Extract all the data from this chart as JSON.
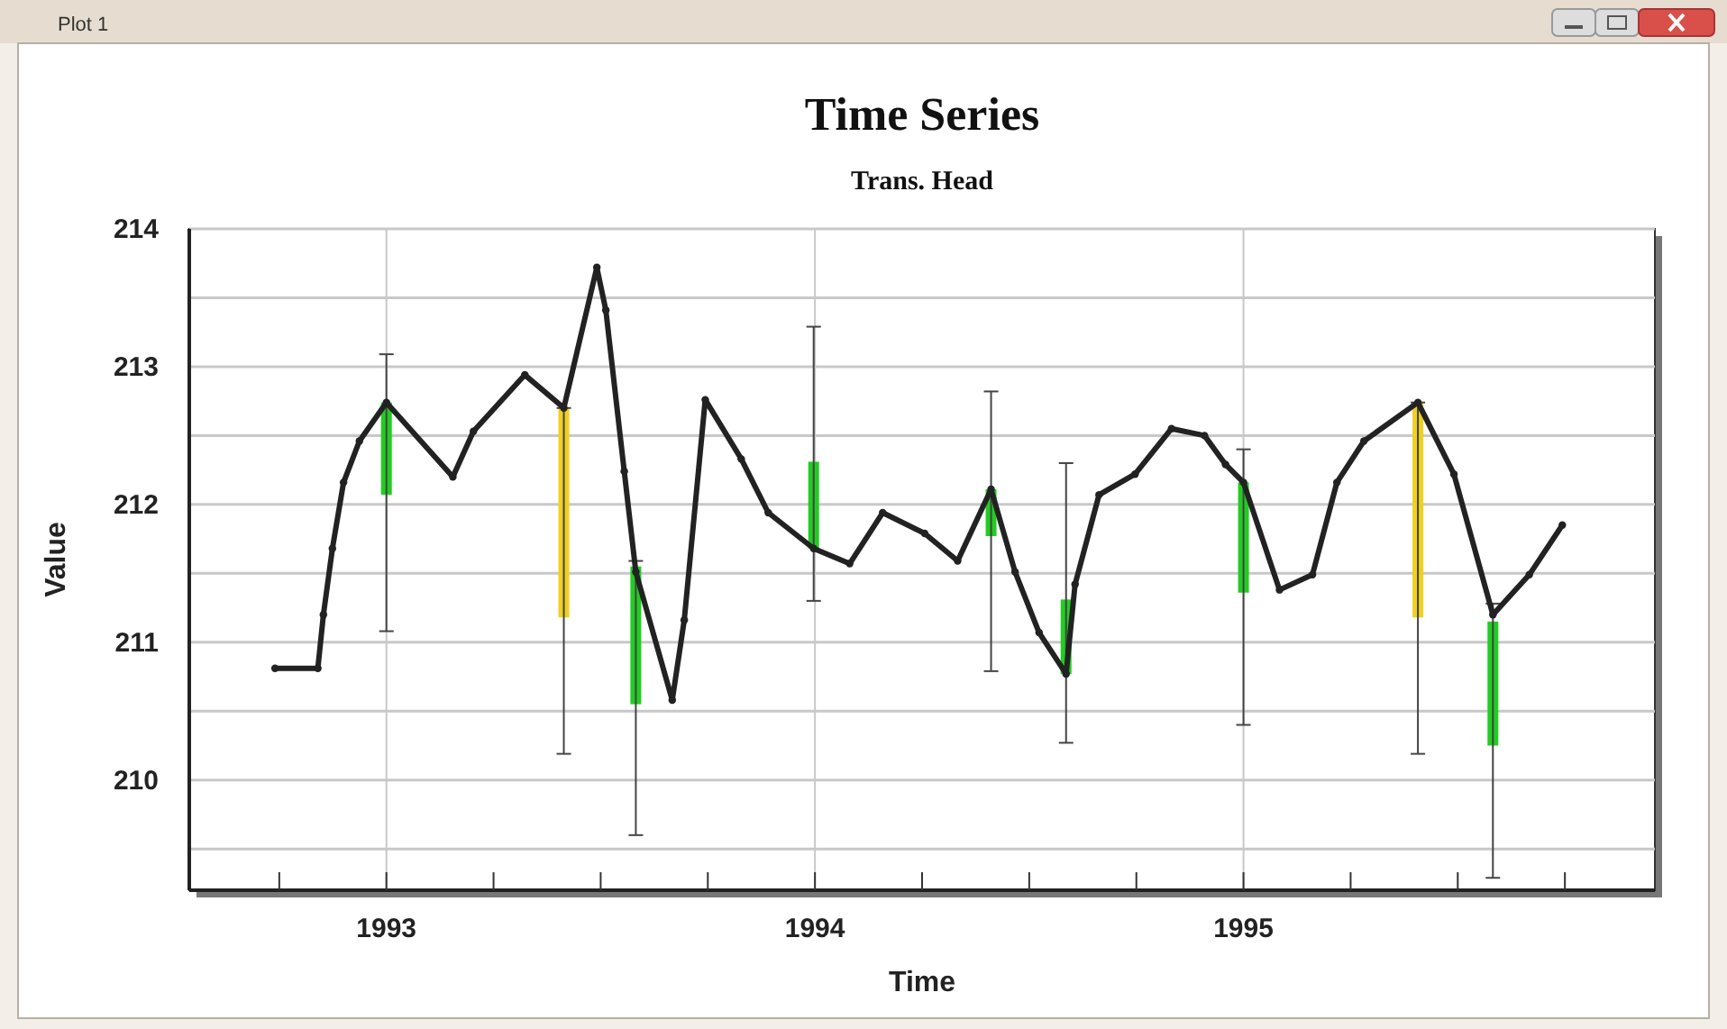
{
  "chart_data": {
    "type": "line",
    "title": "Time Series",
    "subtitle": "Trans. Head",
    "xlabel": "Time",
    "ylabel": "Value",
    "annotations": [
      "Plot 1"
    ],
    "xlim": [
      1992.54,
      1995.96
    ],
    "ylim": [
      209.2,
      214
    ],
    "xticks": [
      {
        "value": 1992.75,
        "label": null
      },
      1993,
      {
        "value": 1993.25,
        "label": null
      },
      {
        "value": 1993.5,
        "label": null
      },
      {
        "value": 1993.75,
        "label": null
      },
      1994,
      {
        "value": 1994.25,
        "label": null
      },
      {
        "value": 1994.5,
        "label": null
      },
      {
        "value": 1994.75,
        "label": null
      },
      1995,
      {
        "value": 1995.25,
        "label": null
      },
      {
        "value": 1995.5,
        "label": null
      },
      {
        "value": 1995.75,
        "label": null
      }
    ],
    "yticks": [
      {
        "value": 209.5,
        "label": null
      },
      210,
      {
        "value": 210.5,
        "label": null
      },
      211,
      {
        "value": 211.5,
        "label": null
      },
      212,
      {
        "value": 212.5,
        "label": null
      },
      213,
      {
        "value": 213.5,
        "label": null
      },
      214
    ],
    "grid": true,
    "marker": "circle",
    "line_style": "solid",
    "series": [
      {
        "color": "#222222",
        "x": [
          1992.74,
          1992.84,
          1992.853,
          1992.874,
          1992.9,
          1992.937,
          1993.0,
          1993.155,
          1993.203,
          1993.323,
          1993.414,
          1993.491,
          1993.512,
          1993.555,
          1993.582,
          1993.667,
          1993.695,
          1993.744,
          1993.828,
          1993.891,
          1993.997,
          1994.081,
          1994.158,
          1994.256,
          1994.333,
          1994.411,
          1994.467,
          1994.523,
          1994.586,
          1994.607,
          1994.663,
          1994.747,
          1994.832,
          1994.909,
          1994.958,
          1995.0,
          1995.084,
          1995.161,
          1995.218,
          1995.281,
          1995.407,
          1995.491,
          1995.582,
          1995.667,
          1995.744
        ],
        "values": [
          210.81,
          210.81,
          211.2,
          211.68,
          212.16,
          212.46,
          212.74,
          212.2,
          212.53,
          212.94,
          212.7,
          213.72,
          213.41,
          212.24,
          211.51,
          210.58,
          211.16,
          212.76,
          212.33,
          211.94,
          211.68,
          211.57,
          211.94,
          211.79,
          211.59,
          212.11,
          211.51,
          211.07,
          210.77,
          211.42,
          212.07,
          212.22,
          212.55,
          212.5,
          212.29,
          212.16,
          211.38,
          211.49,
          212.16,
          212.46,
          212.74,
          212.22,
          211.2,
          211.49,
          211.85
        ],
        "errors": [
          null,
          null,
          null,
          null,
          null,
          null,
          [
            211.08,
            213.09
          ],
          null,
          null,
          null,
          [
            210.19,
            212.7
          ],
          null,
          null,
          null,
          [
            209.6,
            211.59
          ],
          null,
          null,
          null,
          null,
          null,
          [
            211.3,
            213.29
          ],
          null,
          null,
          null,
          null,
          [
            210.79,
            212.82
          ],
          null,
          null,
          [
            210.27,
            212.3
          ],
          null,
          null,
          null,
          null,
          null,
          null,
          [
            210.4,
            212.4
          ],
          null,
          null,
          null,
          null,
          [
            210.19,
            212.74
          ],
          null,
          [
            209.29,
            211.28
          ],
          null,
          null
        ]
      },
      {
        "type": "bar",
        "x": [
          1993.0,
          1993.414,
          1993.582,
          1993.997,
          1994.411,
          1994.586,
          1995.0,
          1995.407,
          1995.582
        ],
        "base": [
          212.07,
          211.18,
          210.55,
          211.68,
          211.77,
          210.77,
          211.36,
          211.18,
          210.25
        ],
        "values": [
          0.67,
          1.52,
          1.0,
          0.63,
          0.34,
          0.54,
          0.8,
          1.56,
          0.9
        ],
        "colors": [
          "#22cc22",
          "#f0d020",
          "#22cc22",
          "#22cc22",
          "#22cc22",
          "#22cc22",
          "#22cc22",
          "#f0d020",
          "#22cc22"
        ]
      }
    ]
  }
}
